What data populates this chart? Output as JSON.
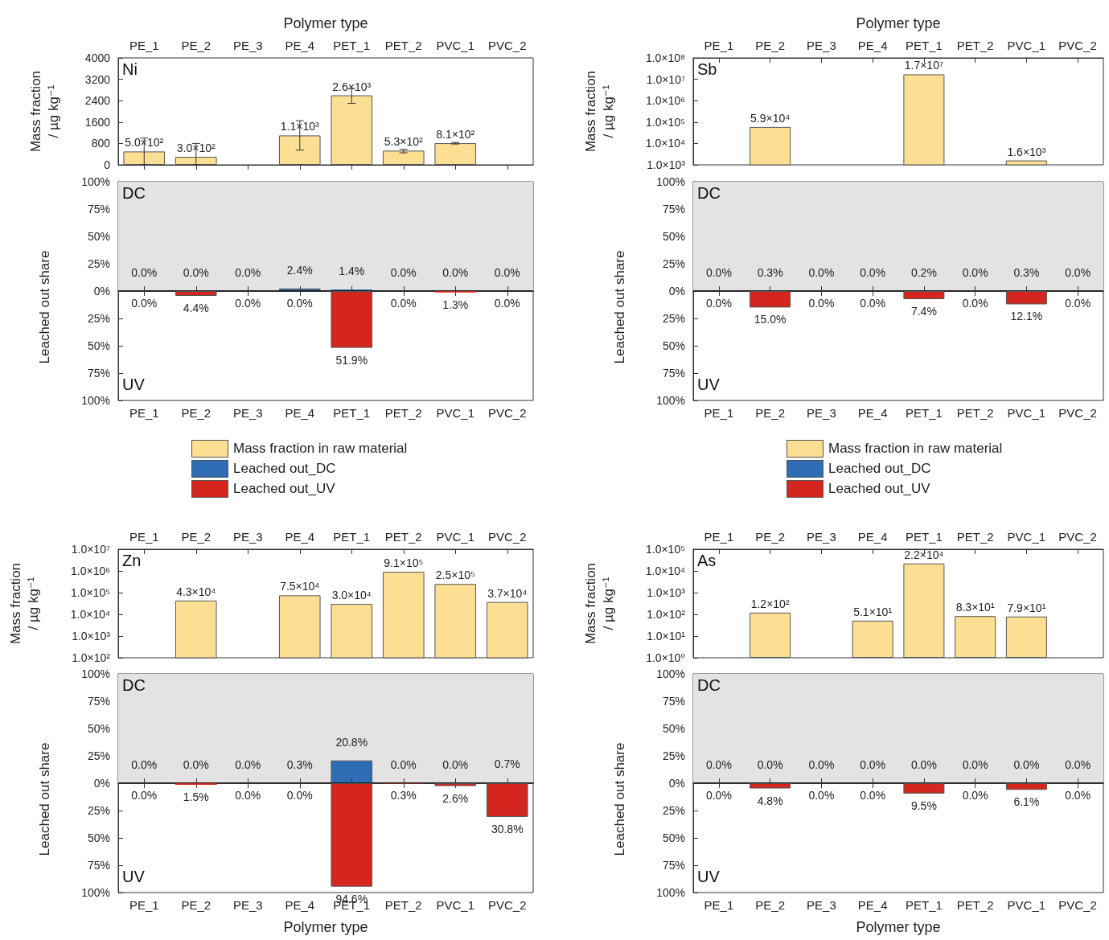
{
  "chart_data": [
    {
      "type": "bar",
      "xlabel": "Polymer type",
      "ylabel": "Mass fraction\n/ µg kg⁻¹",
      "annotations": [
        "Ni"
      ],
      "categories": [
        "PE_1",
        "PE_2",
        "PE_3",
        "PE_4",
        "PET_1",
        "PET_2",
        "PVC_1",
        "PVC_2"
      ],
      "ylim": [
        0,
        4000
      ],
      "yticks": [
        0,
        800,
        1600,
        2400,
        3200,
        4000
      ],
      "series": [
        {
          "name": "Mass fraction in raw material",
          "color": "#fddf94",
          "values": [
            500,
            300,
            null,
            1100,
            2600,
            530,
            810,
            null
          ],
          "errors": [
            [
              0,
              1000
            ],
            [
              0,
              800
            ],
            null,
            [
              550,
              1650
            ],
            [
              2300,
              2850
            ],
            [
              450,
              580
            ],
            [
              780,
              840
            ],
            null
          ],
          "value_labels": [
            "5.0×10²",
            "3.0×10²",
            null,
            "1.1×10³",
            "2.6×10³",
            "5.3×10²",
            "8.1×10²",
            null
          ]
        }
      ]
    },
    {
      "type": "bar",
      "tick_labels": "y",
      "annotations": [
        "DC"
      ],
      "categories": [
        null,
        null,
        null,
        null,
        null,
        null,
        null,
        null
      ],
      "ylim": [
        0,
        100
      ],
      "yticks": [
        {
          "value": 0,
          "label": "0%"
        },
        {
          "value": 25,
          "label": "25%"
        },
        {
          "value": 50,
          "label": "50%"
        },
        {
          "value": 75,
          "label": "75%"
        },
        {
          "value": 100,
          "label": "100%"
        }
      ],
      "bands": [
        {
          "axis": "y",
          "from": 0,
          "to": 100,
          "color": "#e3e3e3"
        }
      ],
      "ref_lines": [
        {
          "axis": "y",
          "value": 0,
          "color": "#000000"
        }
      ],
      "series": [
        {
          "name": "Leached out_DC",
          "color": "#2e6db4",
          "values": [
            0,
            0,
            0,
            2.4,
            1.4,
            0,
            0,
            0
          ],
          "value_labels": [
            "0.0%",
            "0.0%",
            "0.0%",
            "2.4%",
            "1.4%",
            "0.0%",
            "0.0%",
            "0.0%"
          ]
        }
      ]
    },
    {
      "type": "bar",
      "ylabel": "Leached out share",
      "legend": "bottom",
      "annotations": [
        "UV"
      ],
      "categories": [
        "PE_1",
        "PE_2",
        "PE_3",
        "PE_4",
        "PET_1",
        "PET_2",
        "PVC_1",
        "PVC_2"
      ],
      "ylim": [
        100,
        0
      ],
      "yticks": [
        {
          "value": 0,
          "label": null
        },
        {
          "value": 25,
          "label": "25%"
        },
        {
          "value": 50,
          "label": "50%"
        },
        {
          "value": 75,
          "label": "75%"
        },
        {
          "value": 100,
          "label": "100%"
        }
      ],
      "series": [
        {
          "name": "Leached out_UV",
          "color": "#d4261f",
          "values": [
            0,
            4.4,
            0,
            0,
            51.9,
            0,
            1.3,
            0
          ],
          "value_labels": [
            "0.0%",
            "4.4%",
            "0.0%",
            "0.0%",
            "51.9%",
            "0.0%",
            "1.3%",
            "0.0%"
          ]
        }
      ]
    },
    {
      "type": "bar",
      "xlabel": "Polymer type",
      "ylabel": "Mass fraction\n/ µg kg⁻¹",
      "log": true,
      "annotations": [
        "Sb"
      ],
      "categories": [
        "PE_1",
        "PE_2",
        "PE_3",
        "PE_4",
        "PET_1",
        "PET_2",
        "PVC_1",
        "PVC_2"
      ],
      "ylim": [
        1000,
        100000000
      ],
      "yticks": [
        {
          "value": 1000,
          "label": "1.0×10³"
        },
        {
          "value": 10000,
          "label": "1.0×10⁴"
        },
        {
          "value": 100000,
          "label": "1.0×10⁵"
        },
        {
          "value": 1000000,
          "label": "1.0×10⁶"
        },
        {
          "value": 10000000,
          "label": "1.0×10⁷"
        },
        {
          "value": 100000000,
          "label": "1.0×10⁸"
        }
      ],
      "series": [
        {
          "name": "Mass fraction in raw material",
          "color": "#fddf94",
          "values": [
            null,
            59000,
            null,
            null,
            17000000,
            null,
            1600,
            null
          ],
          "value_labels": [
            null,
            "5.9×10⁴",
            null,
            null,
            "1.7×10⁷",
            null,
            "1.6×10³",
            null
          ]
        }
      ]
    },
    {
      "type": "bar",
      "tick_labels": "y",
      "annotations": [
        "DC"
      ],
      "categories": [
        null,
        null,
        null,
        null,
        null,
        null,
        null,
        null
      ],
      "ylim": [
        0,
        100
      ],
      "yticks": [
        {
          "value": 0,
          "label": "0%"
        },
        {
          "value": 25,
          "label": "25%"
        },
        {
          "value": 50,
          "label": "50%"
        },
        {
          "value": 75,
          "label": "75%"
        },
        {
          "value": 100,
          "label": "100%"
        }
      ],
      "bands": [
        {
          "axis": "y",
          "from": 0,
          "to": 100,
          "color": "#e3e3e3"
        }
      ],
      "ref_lines": [
        {
          "axis": "y",
          "value": 0,
          "color": "#000000"
        }
      ],
      "series": [
        {
          "name": "Leached out_DC",
          "color": "#2e6db4",
          "values": [
            0,
            0.3,
            0,
            0,
            0.2,
            0,
            0.3,
            0
          ],
          "value_labels": [
            "0.0%",
            "0.3%",
            "0.0%",
            "0.0%",
            "0.2%",
            "0.0%",
            "0.3%",
            "0.0%"
          ]
        }
      ]
    },
    {
      "type": "bar",
      "ylabel": "Leached out share",
      "legend": "bottom",
      "annotations": [
        "UV"
      ],
      "categories": [
        "PE_1",
        "PE_2",
        "PE_3",
        "PE_4",
        "PET_1",
        "PET_2",
        "PVC_1",
        "PVC_2"
      ],
      "ylim": [
        100,
        0
      ],
      "yticks": [
        {
          "value": 0,
          "label": null
        },
        {
          "value": 25,
          "label": "25%"
        },
        {
          "value": 50,
          "label": "50%"
        },
        {
          "value": 75,
          "label": "75%"
        },
        {
          "value": 100,
          "label": "100%"
        }
      ],
      "series": [
        {
          "name": "Leached out_UV",
          "color": "#d4261f",
          "values": [
            0,
            15.0,
            0,
            0,
            7.4,
            0,
            12.1,
            0
          ],
          "value_labels": [
            "0.0%",
            "15.0%",
            "0.0%",
            "0.0%",
            "7.4%",
            "0.0%",
            "12.1%",
            "0.0%"
          ]
        }
      ]
    },
    {
      "type": "bar",
      "ylabel": "Mass fraction\n/ µg kg⁻¹",
      "log": true,
      "annotations": [
        "Zn"
      ],
      "categories": [
        "PE_1",
        "PE_2",
        "PE_3",
        "PE_4",
        "PET_1",
        "PET_2",
        "PVC_1",
        "PVC_2"
      ],
      "ylim": [
        100,
        10000000
      ],
      "yticks": [
        {
          "value": 100,
          "label": "1.0×10²"
        },
        {
          "value": 1000,
          "label": "1.0×10³"
        },
        {
          "value": 10000,
          "label": "1.0×10⁴"
        },
        {
          "value": 100000,
          "label": "1.0×10⁵"
        },
        {
          "value": 1000000,
          "label": "1.0×10⁶"
        },
        {
          "value": 10000000,
          "label": "1.0×10⁷"
        }
      ],
      "series": [
        {
          "color": "#fddf94",
          "values": [
            null,
            43000,
            null,
            75000,
            30000,
            910000,
            250000,
            37000
          ],
          "value_labels": [
            null,
            "4.3×10⁴",
            null,
            "7.5×10⁴",
            "3.0×10⁴",
            "9.1×10⁵",
            "2.5×10⁵",
            "3.7×10⁴"
          ]
        }
      ]
    },
    {
      "type": "bar",
      "tick_labels": "y",
      "annotations": [
        "DC"
      ],
      "categories": [
        null,
        null,
        null,
        null,
        null,
        null,
        null,
        null
      ],
      "ylim": [
        0,
        100
      ],
      "yticks": [
        {
          "value": 0,
          "label": "0%"
        },
        {
          "value": 25,
          "label": "25%"
        },
        {
          "value": 50,
          "label": "50%"
        },
        {
          "value": 75,
          "label": "75%"
        },
        {
          "value": 100,
          "label": "100%"
        }
      ],
      "bands": [
        {
          "axis": "y",
          "from": 0,
          "to": 100,
          "color": "#e3e3e3"
        }
      ],
      "ref_lines": [
        {
          "axis": "y",
          "value": 0,
          "color": "#000000"
        }
      ],
      "series": [
        {
          "color": "#2e6db4",
          "values": [
            0,
            0,
            0,
            0.3,
            20.8,
            0,
            0,
            0.7
          ],
          "value_labels": [
            "0.0%",
            "0.0%",
            "0.0%",
            "0.3%",
            "20.8%",
            "0.0%",
            "0.0%",
            "0.7%"
          ]
        }
      ]
    },
    {
      "type": "bar",
      "xlabel": "Polymer type",
      "ylabel": "Leached out share",
      "annotations": [
        "UV"
      ],
      "categories": [
        "PE_1",
        "PE_2",
        "PE_3",
        "PE_4",
        "PET_1",
        "PET_2",
        "PVC_1",
        "PVC_2"
      ],
      "ylim": [
        100,
        0
      ],
      "yticks": [
        {
          "value": 0,
          "label": null
        },
        {
          "value": 25,
          "label": "25%"
        },
        {
          "value": 50,
          "label": "50%"
        },
        {
          "value": 75,
          "label": "75%"
        },
        {
          "value": 100,
          "label": "100%"
        }
      ],
      "series": [
        {
          "color": "#d4261f",
          "values": [
            0,
            1.5,
            0,
            0,
            94.6,
            0.3,
            2.6,
            30.8
          ],
          "value_labels": [
            "0.0%",
            "1.5%",
            "0.0%",
            "0.0%",
            "94.6%",
            "0.3%",
            "2.6%",
            "30.8%"
          ]
        }
      ]
    },
    {
      "type": "bar",
      "ylabel": "Mass fraction\n/ µg kg⁻¹",
      "log": true,
      "annotations": [
        "As"
      ],
      "categories": [
        "PE_1",
        "PE_2",
        "PE_3",
        "PE_4",
        "PET_1",
        "PET_2",
        "PVC_1",
        "PVC_2"
      ],
      "ylim": [
        1,
        100000
      ],
      "yticks": [
        {
          "value": 1,
          "label": "1.0×10⁰"
        },
        {
          "value": 10,
          "label": "1.0×10¹"
        },
        {
          "value": 100,
          "label": "1.0×10²"
        },
        {
          "value": 1000,
          "label": "1.0×10³"
        },
        {
          "value": 10000,
          "label": "1.0×10⁴"
        },
        {
          "value": 100000,
          "label": "1.0×10⁵"
        }
      ],
      "series": [
        {
          "color": "#fddf94",
          "values": [
            null,
            120,
            null,
            51,
            22000,
            83,
            79,
            null
          ],
          "value_labels": [
            null,
            "1.2×10²",
            null,
            "5.1×10¹",
            "2.2×10⁴",
            "8.3×10¹",
            "7.9×10¹",
            null
          ]
        }
      ]
    },
    {
      "type": "bar",
      "tick_labels": "y",
      "annotations": [
        "DC"
      ],
      "categories": [
        null,
        null,
        null,
        null,
        null,
        null,
        null,
        null
      ],
      "ylim": [
        0,
        100
      ],
      "yticks": [
        {
          "value": 0,
          "label": "0%"
        },
        {
          "value": 25,
          "label": "25%"
        },
        {
          "value": 50,
          "label": "50%"
        },
        {
          "value": 75,
          "label": "75%"
        },
        {
          "value": 100,
          "label": "100%"
        }
      ],
      "bands": [
        {
          "axis": "y",
          "from": 0,
          "to": 100,
          "color": "#e3e3e3"
        }
      ],
      "ref_lines": [
        {
          "axis": "y",
          "value": 0,
          "color": "#000000"
        }
      ],
      "series": [
        {
          "color": "#2e6db4",
          "values": [
            0,
            0,
            0,
            0,
            0,
            0,
            0,
            0
          ],
          "value_labels": [
            "0.0%",
            "0.0%",
            "0.0%",
            "0.0%",
            "0.0%",
            "0.0%",
            "0.0%",
            "0.0%"
          ]
        }
      ]
    },
    {
      "type": "bar",
      "xlabel": "Polymer type",
      "ylabel": "Leached out share",
      "annotations": [
        "UV"
      ],
      "categories": [
        "PE_1",
        "PE_2",
        "PE_3",
        "PE_4",
        "PET_1",
        "PET_2",
        "PVC_1",
        "PVC_2"
      ],
      "ylim": [
        100,
        0
      ],
      "yticks": [
        {
          "value": 0,
          "label": null
        },
        {
          "value": 25,
          "label": "25%"
        },
        {
          "value": 50,
          "label": "50%"
        },
        {
          "value": 75,
          "label": "75%"
        },
        {
          "value": 100,
          "label": "100%"
        }
      ],
      "series": [
        {
          "color": "#d4261f",
          "values": [
            0,
            4.8,
            0,
            0,
            9.5,
            0,
            6.1,
            0
          ],
          "value_labels": [
            "0.0%",
            "4.8%",
            "0.0%",
            "0.0%",
            "9.5%",
            "0.0%",
            "6.1%",
            "0.0%"
          ]
        }
      ]
    }
  ]
}
